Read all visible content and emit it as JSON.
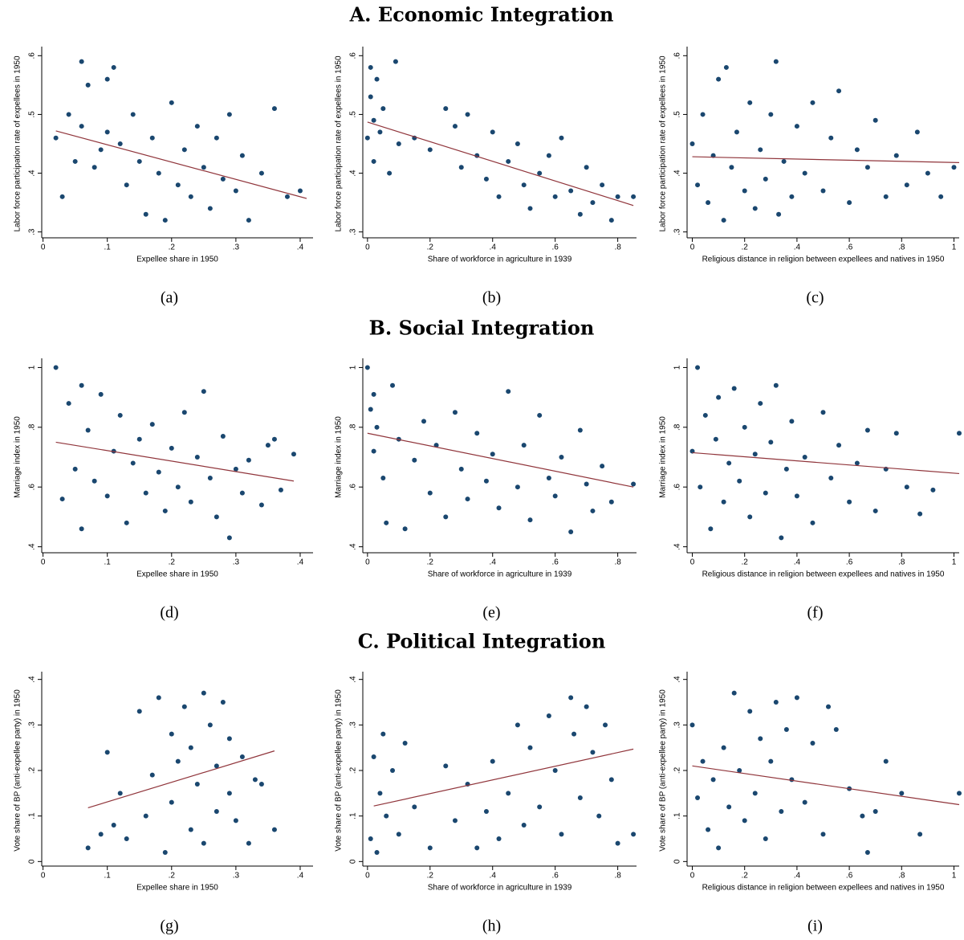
{
  "sections": [
    {
      "title": "A. Economic Integration"
    },
    {
      "title": "B. Social Integration"
    },
    {
      "title": "C. Political Integration"
    }
  ],
  "style": {
    "point_color": "#1a476f",
    "fit_color": "#90353b"
  },
  "chart_data": [
    {
      "type": "scatter",
      "panel_label": "(a)",
      "xlabel": "Expellee share in 1950",
      "ylabel": "Labor force participation rate of expellees in 1950",
      "xlim": [
        -0.002,
        0.42
      ],
      "ylim": [
        0.29,
        0.61
      ],
      "xticks": [
        0,
        {
          "value": 0.1,
          "label": ".1"
        },
        {
          "value": 0.2,
          "label": ".2"
        },
        {
          "value": 0.3,
          "label": ".3"
        },
        {
          "value": 0.4,
          "label": ".4"
        }
      ],
      "yticks": [
        {
          "value": 0.3,
          "label": ".3"
        },
        {
          "value": 0.4,
          "label": ".4"
        },
        {
          "value": 0.5,
          "label": ".5"
        },
        {
          "value": 0.6,
          "label": ".6"
        }
      ],
      "x": [
        0.02,
        0.03,
        0.04,
        0.05,
        0.06,
        0.06,
        0.07,
        0.08,
        0.09,
        0.1,
        0.1,
        0.11,
        0.12,
        0.13,
        0.14,
        0.15,
        0.16,
        0.17,
        0.18,
        0.19,
        0.2,
        0.21,
        0.22,
        0.23,
        0.24,
        0.25,
        0.26,
        0.27,
        0.28,
        0.29,
        0.3,
        0.31,
        0.32,
        0.34,
        0.36,
        0.38,
        0.4
      ],
      "values": [
        0.46,
        0.36,
        0.5,
        0.42,
        0.59,
        0.48,
        0.55,
        0.41,
        0.44,
        0.56,
        0.47,
        0.58,
        0.45,
        0.38,
        0.5,
        0.42,
        0.33,
        0.46,
        0.4,
        0.32,
        0.52,
        0.38,
        0.44,
        0.36,
        0.48,
        0.41,
        0.34,
        0.46,
        0.39,
        0.5,
        0.37,
        0.43,
        0.32,
        0.4,
        0.51,
        0.36,
        0.37
      ],
      "fit": {
        "x": [
          0.02,
          0.41
        ],
        "values": [
          0.472,
          0.357
        ]
      }
    },
    {
      "type": "scatter",
      "panel_label": "(b)",
      "xlabel": "Share of workforce in agriculture in 1939",
      "ylabel": "Labor force participation rate of expellees in 1950",
      "xlim": [
        -0.015,
        0.86
      ],
      "ylim": [
        0.29,
        0.61
      ],
      "xticks": [
        0,
        {
          "value": 0.2,
          "label": ".2"
        },
        {
          "value": 0.4,
          "label": ".4"
        },
        {
          "value": 0.6,
          "label": ".6"
        },
        {
          "value": 0.8,
          "label": ".8"
        }
      ],
      "yticks": [
        {
          "value": 0.3,
          "label": ".3"
        },
        {
          "value": 0.4,
          "label": ".4"
        },
        {
          "value": 0.5,
          "label": ".5"
        },
        {
          "value": 0.6,
          "label": ".6"
        }
      ],
      "x": [
        0.0,
        0.01,
        0.01,
        0.02,
        0.02,
        0.03,
        0.04,
        0.05,
        0.07,
        0.09,
        0.1,
        0.15,
        0.2,
        0.25,
        0.28,
        0.3,
        0.32,
        0.35,
        0.38,
        0.4,
        0.42,
        0.45,
        0.48,
        0.5,
        0.52,
        0.55,
        0.58,
        0.6,
        0.62,
        0.65,
        0.68,
        0.7,
        0.72,
        0.75,
        0.78,
        0.8,
        0.85
      ],
      "values": [
        0.46,
        0.53,
        0.58,
        0.49,
        0.42,
        0.56,
        0.47,
        0.51,
        0.4,
        0.59,
        0.45,
        0.46,
        0.44,
        0.51,
        0.48,
        0.41,
        0.5,
        0.43,
        0.39,
        0.47,
        0.36,
        0.42,
        0.45,
        0.38,
        0.34,
        0.4,
        0.43,
        0.36,
        0.46,
        0.37,
        0.33,
        0.41,
        0.35,
        0.38,
        0.32,
        0.36,
        0.36
      ],
      "fit": {
        "x": [
          0.0,
          0.85
        ],
        "values": [
          0.487,
          0.345
        ]
      }
    },
    {
      "type": "scatter",
      "panel_label": "(c)",
      "xlabel": "Religious distance in religion between expellees and natives in 1950",
      "ylabel": "Labor force participation rate of expellees in 1950",
      "xlim": [
        -0.02,
        1.02
      ],
      "ylim": [
        0.29,
        0.61
      ],
      "xticks": [
        0,
        {
          "value": 0.2,
          "label": ".2"
        },
        {
          "value": 0.4,
          "label": ".4"
        },
        {
          "value": 0.6,
          "label": ".6"
        },
        {
          "value": 0.8,
          "label": ".8"
        },
        1
      ],
      "yticks": [
        {
          "value": 0.3,
          "label": ".3"
        },
        {
          "value": 0.4,
          "label": ".4"
        },
        {
          "value": 0.5,
          "label": ".5"
        },
        {
          "value": 0.6,
          "label": ".6"
        }
      ],
      "x": [
        0.0,
        0.02,
        0.04,
        0.06,
        0.08,
        0.1,
        0.12,
        0.13,
        0.15,
        0.17,
        0.2,
        0.22,
        0.24,
        0.26,
        0.28,
        0.3,
        0.32,
        0.33,
        0.35,
        0.38,
        0.4,
        0.43,
        0.46,
        0.5,
        0.53,
        0.56,
        0.6,
        0.63,
        0.67,
        0.7,
        0.74,
        0.78,
        0.82,
        0.86,
        0.9,
        0.95,
        1.0
      ],
      "values": [
        0.45,
        0.38,
        0.5,
        0.35,
        0.43,
        0.56,
        0.32,
        0.58,
        0.41,
        0.47,
        0.37,
        0.52,
        0.34,
        0.44,
        0.39,
        0.5,
        0.59,
        0.33,
        0.42,
        0.36,
        0.48,
        0.4,
        0.52,
        0.37,
        0.46,
        0.54,
        0.35,
        0.44,
        0.41,
        0.49,
        0.36,
        0.43,
        0.38,
        0.47,
        0.4,
        0.36,
        0.41
      ],
      "fit": {
        "x": [
          0.0,
          1.02
        ],
        "values": [
          0.428,
          0.418
        ]
      }
    },
    {
      "type": "scatter",
      "panel_label": "(d)",
      "xlabel": "Expellee share in 1950",
      "ylabel": "Marriage index in 1950",
      "xlim": [
        -0.002,
        0.42
      ],
      "ylim": [
        0.38,
        1.02
      ],
      "xticks": [
        0,
        {
          "value": 0.1,
          "label": ".1"
        },
        {
          "value": 0.2,
          "label": ".2"
        },
        {
          "value": 0.3,
          "label": ".3"
        },
        {
          "value": 0.4,
          "label": ".4"
        }
      ],
      "yticks": [
        {
          "value": 0.4,
          "label": ".4"
        },
        {
          "value": 0.6,
          "label": ".6"
        },
        {
          "value": 0.8,
          "label": ".8"
        },
        1
      ],
      "x": [
        0.02,
        0.03,
        0.04,
        0.05,
        0.06,
        0.06,
        0.07,
        0.08,
        0.09,
        0.1,
        0.11,
        0.12,
        0.13,
        0.14,
        0.15,
        0.16,
        0.17,
        0.18,
        0.19,
        0.2,
        0.21,
        0.22,
        0.23,
        0.24,
        0.25,
        0.26,
        0.27,
        0.28,
        0.29,
        0.3,
        0.31,
        0.32,
        0.34,
        0.35,
        0.36,
        0.37,
        0.39
      ],
      "values": [
        1.0,
        0.56,
        0.88,
        0.66,
        0.46,
        0.94,
        0.79,
        0.62,
        0.91,
        0.57,
        0.72,
        0.84,
        0.48,
        0.68,
        0.76,
        0.58,
        0.81,
        0.65,
        0.52,
        0.73,
        0.6,
        0.85,
        0.55,
        0.7,
        0.92,
        0.63,
        0.5,
        0.77,
        0.43,
        0.66,
        0.58,
        0.69,
        0.54,
        0.74,
        0.76,
        0.59,
        0.71
      ],
      "fit": {
        "x": [
          0.02,
          0.39
        ],
        "values": [
          0.75,
          0.62
        ]
      }
    },
    {
      "type": "scatter",
      "panel_label": "(e)",
      "xlabel": "Share of workforce in agriculture in 1939",
      "ylabel": "Marriage index in 1950",
      "xlim": [
        -0.015,
        0.86
      ],
      "ylim": [
        0.38,
        1.02
      ],
      "xticks": [
        0,
        {
          "value": 0.2,
          "label": ".2"
        },
        {
          "value": 0.4,
          "label": ".4"
        },
        {
          "value": 0.6,
          "label": ".6"
        },
        {
          "value": 0.8,
          "label": ".8"
        }
      ],
      "yticks": [
        {
          "value": 0.4,
          "label": ".4"
        },
        {
          "value": 0.6,
          "label": ".6"
        },
        {
          "value": 0.8,
          "label": ".8"
        },
        1
      ],
      "x": [
        0.0,
        0.01,
        0.02,
        0.02,
        0.03,
        0.05,
        0.06,
        0.08,
        0.1,
        0.12,
        0.15,
        0.18,
        0.2,
        0.22,
        0.25,
        0.28,
        0.3,
        0.32,
        0.35,
        0.38,
        0.4,
        0.42,
        0.45,
        0.48,
        0.5,
        0.52,
        0.55,
        0.58,
        0.6,
        0.62,
        0.65,
        0.68,
        0.7,
        0.72,
        0.75,
        0.78,
        0.85
      ],
      "values": [
        1.0,
        0.86,
        0.72,
        0.91,
        0.8,
        0.63,
        0.48,
        0.94,
        0.76,
        0.46,
        0.69,
        0.82,
        0.58,
        0.74,
        0.5,
        0.85,
        0.66,
        0.56,
        0.78,
        0.62,
        0.71,
        0.53,
        0.92,
        0.6,
        0.74,
        0.49,
        0.84,
        0.63,
        0.57,
        0.7,
        0.45,
        0.79,
        0.61,
        0.52,
        0.67,
        0.55,
        0.61
      ],
      "fit": {
        "x": [
          0.0,
          0.85
        ],
        "values": [
          0.78,
          0.6
        ]
      }
    },
    {
      "type": "scatter",
      "panel_label": "(f)",
      "xlabel": "Religious distance in religion between expellees and natives in 1950",
      "ylabel": "Marriage index in 1950",
      "xlim": [
        -0.02,
        1.02
      ],
      "ylim": [
        0.38,
        1.02
      ],
      "xticks": [
        0,
        {
          "value": 0.2,
          "label": ".2"
        },
        {
          "value": 0.4,
          "label": ".4"
        },
        {
          "value": 0.6,
          "label": ".6"
        },
        {
          "value": 0.8,
          "label": ".8"
        },
        1
      ],
      "yticks": [
        {
          "value": 0.4,
          "label": ".4"
        },
        {
          "value": 0.6,
          "label": ".6"
        },
        {
          "value": 0.8,
          "label": ".8"
        },
        1
      ],
      "x": [
        0.0,
        0.02,
        0.03,
        0.05,
        0.07,
        0.09,
        0.1,
        0.12,
        0.14,
        0.16,
        0.18,
        0.2,
        0.22,
        0.24,
        0.26,
        0.28,
        0.3,
        0.32,
        0.34,
        0.36,
        0.38,
        0.4,
        0.43,
        0.46,
        0.5,
        0.53,
        0.56,
        0.6,
        0.63,
        0.67,
        0.7,
        0.74,
        0.78,
        0.82,
        0.87,
        0.92,
        1.02
      ],
      "values": [
        0.72,
        1.0,
        0.6,
        0.84,
        0.46,
        0.76,
        0.9,
        0.55,
        0.68,
        0.93,
        0.62,
        0.8,
        0.5,
        0.71,
        0.88,
        0.58,
        0.75,
        0.94,
        0.43,
        0.66,
        0.82,
        0.57,
        0.7,
        0.48,
        0.85,
        0.63,
        0.74,
        0.55,
        0.68,
        0.79,
        0.52,
        0.66,
        0.78,
        0.6,
        0.51,
        0.59,
        0.78
      ],
      "fit": {
        "x": [
          0.0,
          1.02
        ],
        "values": [
          0.715,
          0.645
        ]
      }
    },
    {
      "type": "scatter",
      "panel_label": "(g)",
      "xlabel": "Expellee share in 1950",
      "ylabel": "Vote share of BP (anti-expellee party) in 1950",
      "xlim": [
        -0.002,
        0.42
      ],
      "ylim": [
        -0.01,
        0.41
      ],
      "xticks": [
        0,
        {
          "value": 0.1,
          "label": ".1"
        },
        {
          "value": 0.2,
          "label": ".2"
        },
        {
          "value": 0.3,
          "label": ".3"
        },
        {
          "value": 0.4,
          "label": ".4"
        }
      ],
      "yticks": [
        0,
        {
          "value": 0.1,
          "label": ".1"
        },
        {
          "value": 0.2,
          "label": ".2"
        },
        {
          "value": 0.3,
          "label": ".3"
        },
        {
          "value": 0.4,
          "label": ".4"
        }
      ],
      "x": [
        0.07,
        0.09,
        0.1,
        0.11,
        0.12,
        0.13,
        0.15,
        0.16,
        0.17,
        0.18,
        0.19,
        0.2,
        0.2,
        0.21,
        0.22,
        0.23,
        0.23,
        0.24,
        0.25,
        0.25,
        0.26,
        0.27,
        0.27,
        0.28,
        0.29,
        0.29,
        0.3,
        0.31,
        0.32,
        0.33,
        0.34,
        0.36
      ],
      "values": [
        0.03,
        0.06,
        0.24,
        0.08,
        0.15,
        0.05,
        0.33,
        0.1,
        0.19,
        0.36,
        0.02,
        0.28,
        0.13,
        0.22,
        0.34,
        0.07,
        0.25,
        0.17,
        0.37,
        0.04,
        0.3,
        0.21,
        0.11,
        0.35,
        0.27,
        0.15,
        0.09,
        0.23,
        0.04,
        0.18,
        0.17,
        0.07
      ],
      "fit": {
        "x": [
          0.07,
          0.36
        ],
        "values": [
          0.118,
          0.243
        ]
      }
    },
    {
      "type": "scatter",
      "panel_label": "(h)",
      "xlabel": "Share of workforce in agriculture in 1939",
      "ylabel": "Vote share of BP (anti-expellee party) in 1950",
      "xlim": [
        -0.015,
        0.86
      ],
      "ylim": [
        -0.01,
        0.41
      ],
      "xticks": [
        0,
        {
          "value": 0.2,
          "label": ".2"
        },
        {
          "value": 0.4,
          "label": ".4"
        },
        {
          "value": 0.6,
          "label": ".6"
        },
        {
          "value": 0.8,
          "label": ".8"
        }
      ],
      "yticks": [
        0,
        {
          "value": 0.1,
          "label": ".1"
        },
        {
          "value": 0.2,
          "label": ".2"
        },
        {
          "value": 0.3,
          "label": ".3"
        },
        {
          "value": 0.4,
          "label": ".4"
        }
      ],
      "x": [
        0.01,
        0.02,
        0.03,
        0.04,
        0.05,
        0.06,
        0.08,
        0.1,
        0.12,
        0.15,
        0.2,
        0.25,
        0.28,
        0.32,
        0.35,
        0.38,
        0.4,
        0.42,
        0.45,
        0.48,
        0.5,
        0.52,
        0.55,
        0.58,
        0.6,
        0.62,
        0.65,
        0.66,
        0.68,
        0.7,
        0.72,
        0.74,
        0.76,
        0.78,
        0.8,
        0.85
      ],
      "values": [
        0.05,
        0.23,
        0.02,
        0.15,
        0.28,
        0.1,
        0.2,
        0.06,
        0.26,
        0.12,
        0.03,
        0.21,
        0.09,
        0.17,
        0.03,
        0.11,
        0.22,
        0.05,
        0.15,
        0.3,
        0.08,
        0.25,
        0.12,
        0.32,
        0.2,
        0.06,
        0.36,
        0.28,
        0.14,
        0.34,
        0.24,
        0.1,
        0.3,
        0.18,
        0.04,
        0.06
      ],
      "fit": {
        "x": [
          0.02,
          0.85
        ],
        "values": [
          0.122,
          0.247
        ]
      }
    },
    {
      "type": "scatter",
      "panel_label": "(i)",
      "xlabel": "Religious distance in religion between expellees and natives in 1950",
      "ylabel": "Vote share of BP (anti-expellee party) in 1950",
      "xlim": [
        -0.02,
        1.02
      ],
      "ylim": [
        -0.01,
        0.41
      ],
      "xticks": [
        0,
        {
          "value": 0.2,
          "label": ".2"
        },
        {
          "value": 0.4,
          "label": ".4"
        },
        {
          "value": 0.6,
          "label": ".6"
        },
        {
          "value": 0.8,
          "label": ".8"
        },
        1
      ],
      "yticks": [
        0,
        {
          "value": 0.1,
          "label": ".1"
        },
        {
          "value": 0.2,
          "label": ".2"
        },
        {
          "value": 0.3,
          "label": ".3"
        },
        {
          "value": 0.4,
          "label": ".4"
        }
      ],
      "x": [
        0.0,
        0.02,
        0.04,
        0.06,
        0.08,
        0.1,
        0.12,
        0.14,
        0.16,
        0.18,
        0.2,
        0.22,
        0.24,
        0.26,
        0.28,
        0.3,
        0.32,
        0.34,
        0.36,
        0.38,
        0.4,
        0.43,
        0.46,
        0.5,
        0.52,
        0.55,
        0.6,
        0.65,
        0.67,
        0.7,
        0.74,
        0.8,
        0.87,
        1.02
      ],
      "values": [
        0.3,
        0.14,
        0.22,
        0.07,
        0.18,
        0.03,
        0.25,
        0.12,
        0.37,
        0.2,
        0.09,
        0.33,
        0.15,
        0.27,
        0.05,
        0.22,
        0.35,
        0.11,
        0.29,
        0.18,
        0.36,
        0.13,
        0.26,
        0.06,
        0.34,
        0.29,
        0.16,
        0.1,
        0.02,
        0.11,
        0.22,
        0.15,
        0.06,
        0.15
      ],
      "fit": {
        "x": [
          0.0,
          1.02
        ],
        "values": [
          0.21,
          0.125
        ]
      }
    }
  ]
}
